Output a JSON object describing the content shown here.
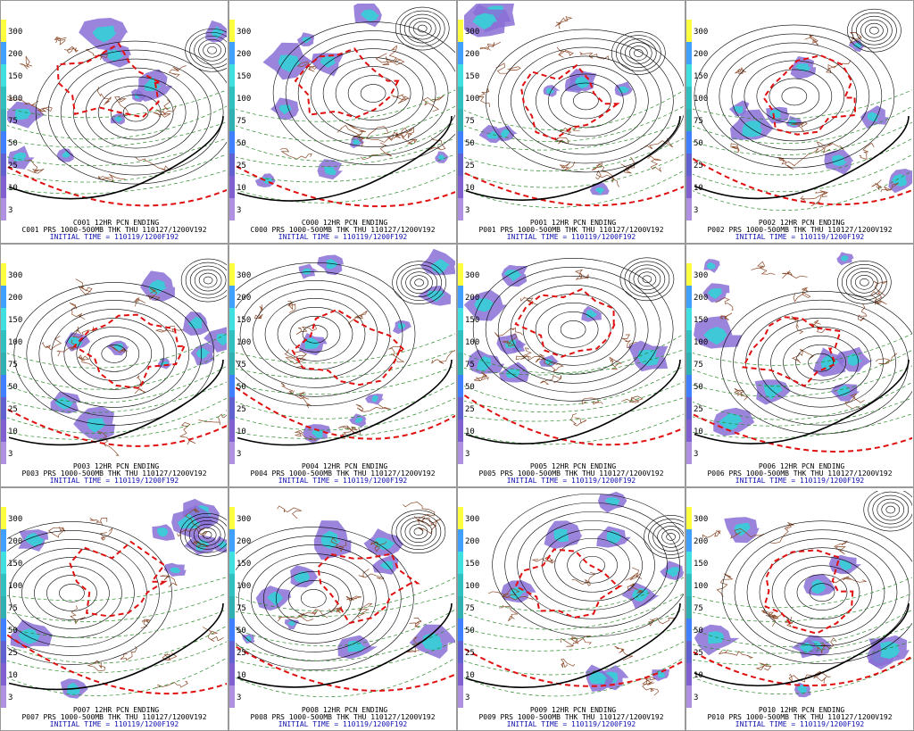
{
  "colorbar_labels": [
    "300",
    "200",
    "150",
    "100",
    "75",
    "50",
    "25",
    "10",
    "3"
  ],
  "panels": [
    {
      "title": "C001 12HR PCN ENDING",
      "subtitle": "C001 PRS 1000-500MB THK THU 110127/1200V192",
      "init": "INITIAL TIME = 110119/1200F192"
    },
    {
      "title": "C000 12HR PCN ENDING",
      "subtitle": "C000 PRS 1000-500MB THK THU 110127/1200V192",
      "init": "INITIAL TIME = 110119/1200F192"
    },
    {
      "title": "P001 12HR PCN ENDING",
      "subtitle": "P001 PRS 1000-500MB THK THU 110127/1200V192",
      "init": "INITIAL TIME = 110119/1200F192"
    },
    {
      "title": "P002 12HR PCN ENDING",
      "subtitle": "P002 PRS 1000-500MB THK THU 110127/1200V192",
      "init": "INITIAL TIME = 110119/1200F192"
    },
    {
      "title": "P003 12HR PCN ENDING",
      "subtitle": "P003 PRS 1000-500MB THK THU 110127/1200V192",
      "init": "INITIAL TIME = 110119/1200F192"
    },
    {
      "title": "P004 12HR PCN ENDING",
      "subtitle": "P004 PRS 1000-500MB THK THU 110127/1200V192",
      "init": "INITIAL TIME = 110119/1200F192"
    },
    {
      "title": "P005 12HR PCN ENDING",
      "subtitle": "P005 PRS 1000-500MB THK THU 110127/1200V192",
      "init": "INITIAL TIME = 110119/1200F192"
    },
    {
      "title": "P006 12HR PCN ENDING",
      "subtitle": "P006 PRS 1000-500MB THK THU 110127/1200V192",
      "init": "INITIAL TIME = 110119/1200F192"
    },
    {
      "title": "P007 12HR PCN ENDING",
      "subtitle": "P007 PRS 1000-500MB THK THU 110127/1200V192",
      "init": "INITIAL TIME = 110119/1200F192"
    },
    {
      "title": "P008 12HR PCN ENDING",
      "subtitle": "P008 PRS 1000-500MB THK THU 110127/1200V192",
      "init": "INITIAL TIME = 110119/1200F192"
    },
    {
      "title": "P009 12HR PCN ENDING",
      "subtitle": "P009 PRS 1000-500MB THK THU 110127/1200V192",
      "init": "INITIAL TIME = 110119/1200F192"
    },
    {
      "title": "P010 12HR PCN ENDING",
      "subtitle": "P010 PRS 1000-500MB THK THU 110127/1200V192",
      "init": "INITIAL TIME = 110119/1200F192"
    }
  ]
}
